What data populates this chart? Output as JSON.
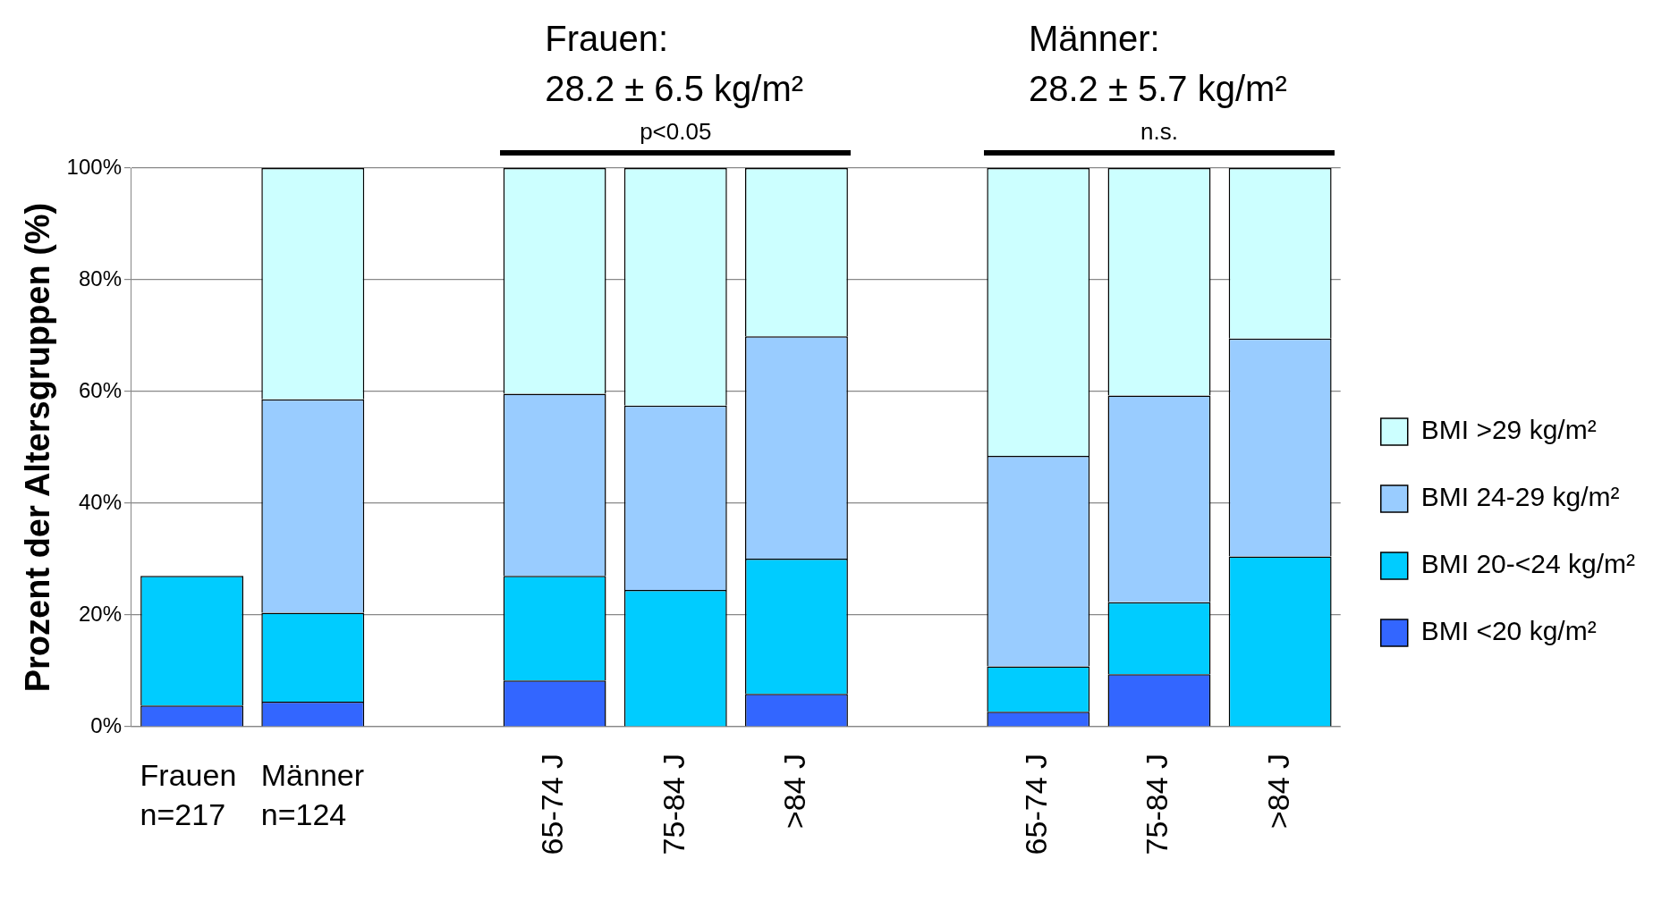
{
  "chart_data": {
    "type": "bar",
    "stacked": true,
    "ylabel": "Prozent der Altersgruppen (%)",
    "categories": [
      "Frauen\nn=217",
      "Männer\nn=124",
      null,
      "65-74 J",
      "75-84 J",
      ">84 J",
      null,
      "65-74 J",
      "75-84 J",
      ">84 J"
    ],
    "series": [
      {
        "name": "BMI <20 kg/m²",
        "color": "#3366ff",
        "values": [
          3.8,
          4.5,
          null,
          8.3,
          0,
          5.9,
          null,
          2.7,
          9.4,
          0
        ]
      },
      {
        "name": "BMI 20-<24 kg/m²",
        "color": "#00ccff",
        "values": [
          23.2,
          15.9,
          null,
          18.7,
          24.5,
          24.2,
          null,
          8.1,
          12.9,
          30.5
        ]
      },
      {
        "name": "BMI 24-29 kg/m²",
        "color": "#99ccff",
        "values": [
          null,
          38.2,
          null,
          32.6,
          33,
          39.8,
          null,
          37.7,
          37,
          39
        ]
      },
      {
        "name": "BMI >29 kg/m²",
        "color": "#ccffff",
        "values": [
          null,
          41.4,
          null,
          40.4,
          42.5,
          30.1,
          null,
          51.5,
          40.7,
          30.5
        ]
      }
    ],
    "ylim": [
      0,
      100
    ],
    "yticks": [
      {
        "value": 0,
        "label": "0%"
      },
      {
        "value": 20,
        "label": "20%"
      },
      {
        "value": 40,
        "label": "40%"
      },
      {
        "value": 60,
        "label": "60%"
      },
      {
        "value": 80,
        "label": "80%"
      },
      {
        "value": 100,
        "label": "100%"
      }
    ],
    "grid": "y",
    "legend": "right",
    "annotations": [
      "Frauen:\n28.2 ± 6.5 kg/m²",
      "p<0.05",
      "Männer:\n28.2 ± 5.7 kg/m²",
      "n.s."
    ]
  }
}
